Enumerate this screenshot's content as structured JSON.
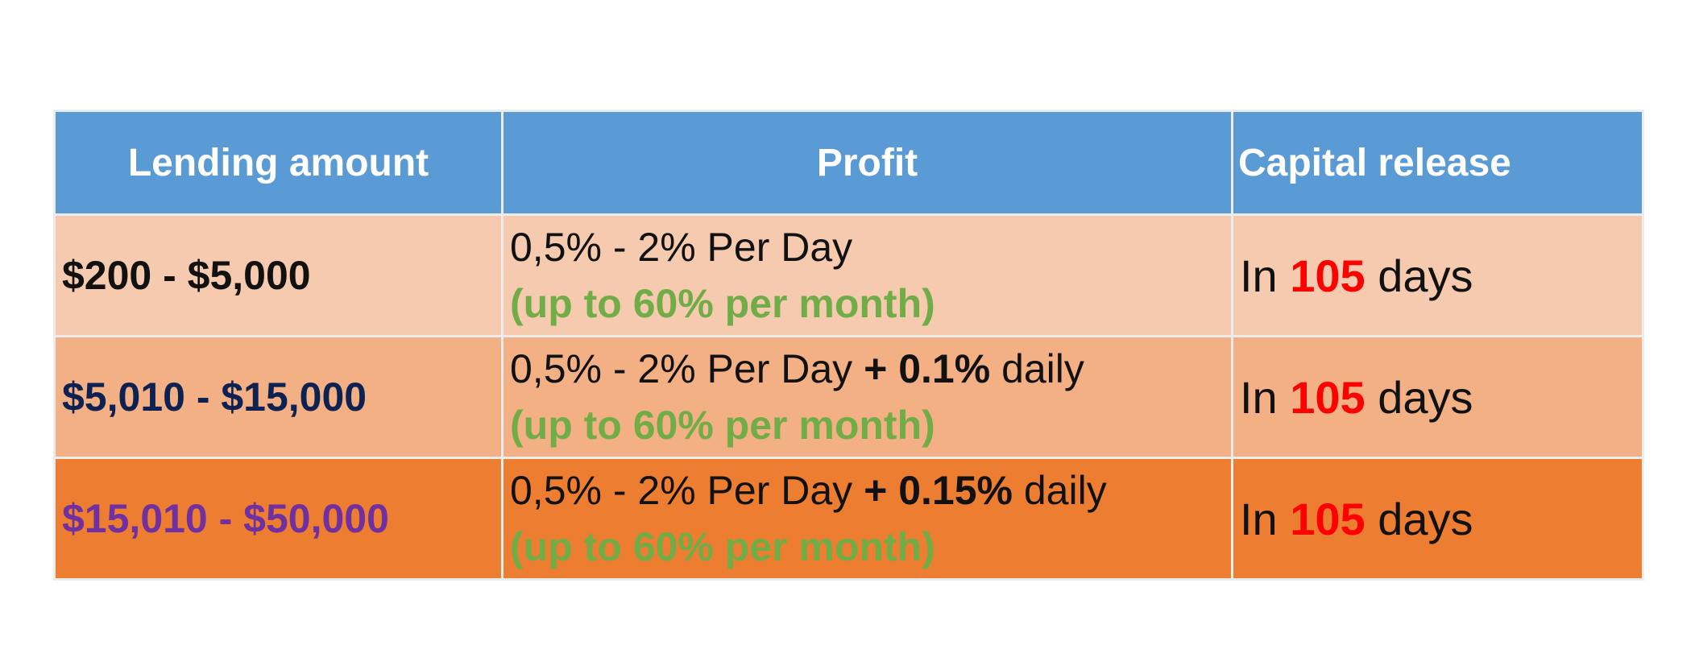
{
  "table": {
    "headers": {
      "amount": "Lending amount",
      "profit": "Profit",
      "release": "Capital release"
    },
    "rows": [
      {
        "amount": "$200 - $5,000",
        "amount_color": "#111111",
        "profit_base": "0,5% - 2% Per Day",
        "profit_bonus_prefix": "",
        "profit_bonus": "",
        "profit_bonus_suffix": "",
        "profit_note": "(up to 60% per month)",
        "release_prefix": "In",
        "release_days": "105",
        "release_suffix": "days"
      },
      {
        "amount": "$5,010 - $15,000",
        "amount_color": "#0d2152",
        "profit_base": "0,5% - 2% Per Day",
        "profit_bonus_prefix": "+",
        "profit_bonus": "0.1%",
        "profit_bonus_suffix": "daily",
        "profit_note": "(up to 60% per month)",
        "release_prefix": "In",
        "release_days": "105",
        "release_suffix": "days"
      },
      {
        "amount": "$15,010 - $50,000",
        "amount_color": "#7030a0",
        "profit_base": "0,5% - 2% Per Day",
        "profit_bonus_prefix": "+",
        "profit_bonus": "0.15%",
        "profit_bonus_suffix": "daily",
        "profit_note": "(up to 60% per month)",
        "release_prefix": "In",
        "release_days": "105",
        "release_suffix": "days"
      }
    ]
  },
  "colors": {
    "header_bg": "#5b9bd5",
    "row1_bg": "#f6caae",
    "row2_bg": "#f3b084",
    "row3_bg": "#ed7d31",
    "note_green": "#70ad47",
    "days_red": "#ff0000"
  }
}
